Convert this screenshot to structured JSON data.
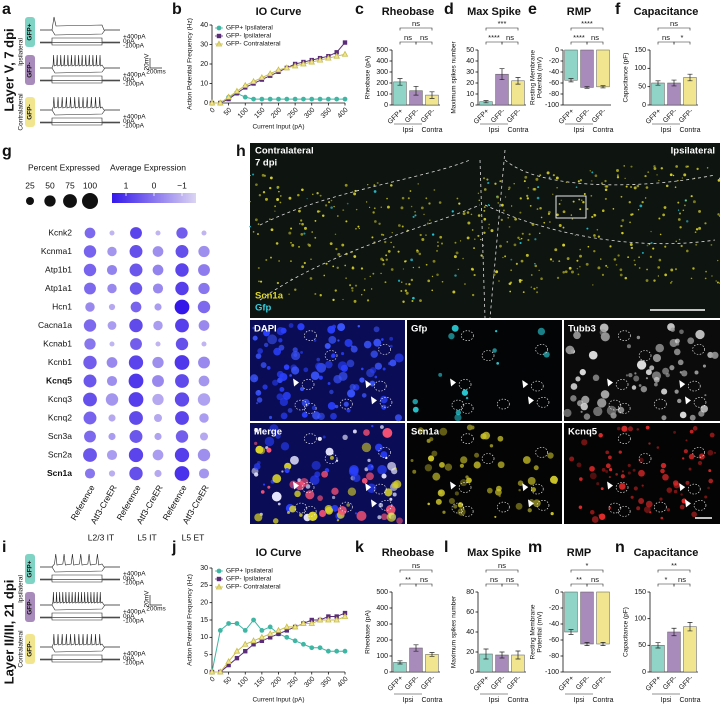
{
  "panel_labels": [
    "a",
    "b",
    "c",
    "d",
    "e",
    "f",
    "g",
    "h",
    "i",
    "j",
    "k",
    "l",
    "m",
    "n"
  ],
  "row_labels": [
    "Layer V, 7 dpi",
    "Layer II/III, 21 dpi"
  ],
  "traces": [
    {
      "cells": [
        "GFP+",
        "GFP-",
        "GFP-"
      ],
      "sides": [
        "Ipsilateral",
        "Contralateral"
      ],
      "steps": [
        "+400pA",
        "0pA",
        "-100pA"
      ],
      "scale": [
        "20mV",
        "200ms"
      ]
    },
    {
      "cells": [
        "GFP+",
        "GFP-",
        "GFP-"
      ],
      "sides": [
        "Ipsilateral",
        "Contralateral"
      ],
      "steps": [
        "+400pA",
        "0pA",
        "-100pA"
      ],
      "scale": [
        "20mV",
        "200ms"
      ]
    }
  ],
  "micrographs": {
    "overview": {
      "left": "Contralateral",
      "time": "7 dpi",
      "right": "Ipsilateral",
      "channels": [
        "Scn1a",
        "Gfp"
      ]
    },
    "tiles": [
      "DAPI",
      "Gfp",
      "Tubb3",
      "Merge",
      "Scn1a",
      "Kcnq5"
    ]
  },
  "chart_data": [
    {
      "type": "line",
      "title": "IO Curve",
      "xlabel": "Current Input (pA)",
      "ylabel": "Action Potential Frequency (Hz)",
      "x": [
        0,
        25,
        50,
        75,
        100,
        125,
        150,
        175,
        200,
        225,
        250,
        275,
        300,
        325,
        350,
        375,
        400
      ],
      "xlim": [
        0,
        400
      ],
      "xticks": [
        0,
        50,
        100,
        150,
        200,
        250,
        300,
        350,
        400
      ],
      "ylim": [
        0,
        40
      ],
      "yticks": [
        0,
        10,
        20,
        30,
        40
      ],
      "legend": "upper left",
      "series": [
        {
          "name": "GFP+ Ipsilateral",
          "color": "#3fb5a3",
          "marker": "circle",
          "values": [
            0,
            0,
            3,
            5,
            3,
            2,
            2,
            2,
            2,
            2,
            2,
            2,
            2,
            2,
            2,
            2,
            2
          ]
        },
        {
          "name": "GFP- Ipsilateral",
          "color": "#5b2d79",
          "marker": "square",
          "values": [
            0,
            0,
            2,
            5,
            8,
            10,
            12,
            14,
            16,
            18,
            20,
            21,
            22,
            23,
            24,
            26,
            31
          ]
        },
        {
          "name": "GFP- Contralateral",
          "color": "#c8bd4c",
          "marker": "triangle",
          "values": [
            0,
            0,
            3,
            6,
            9,
            11,
            13,
            15,
            17,
            18,
            19,
            20,
            21,
            22,
            23,
            24,
            25
          ]
        }
      ]
    },
    {
      "type": "bar",
      "title": "Rheobase",
      "ylabel": "Rheobase (pA)",
      "categories": [
        "GFP+",
        "GFP-",
        "GFP-"
      ],
      "groups": [
        "Ipsi",
        "Contra"
      ],
      "values": [
        210,
        130,
        90
      ],
      "errors": [
        30,
        40,
        30
      ],
      "colors": [
        "#8fd4c7",
        "#a98bbb",
        "#f1e68f"
      ],
      "ylim": [
        0,
        500
      ],
      "yticks": [
        0,
        100,
        200,
        300,
        400,
        500
      ],
      "significance": [
        "ns",
        "ns",
        "ns"
      ]
    },
    {
      "type": "bar",
      "title": "Max Spike",
      "ylabel": "Maximum spikes number",
      "categories": [
        "GFP+",
        "GFP-",
        "GFP-"
      ],
      "groups": [
        "Ipsi",
        "Contra"
      ],
      "values": [
        3,
        28,
        22
      ],
      "errors": [
        1,
        5,
        3
      ],
      "colors": [
        "#8fd4c7",
        "#a98bbb",
        "#f1e68f"
      ],
      "ylim": [
        0,
        50
      ],
      "yticks": [
        0,
        10,
        20,
        30,
        40,
        50
      ],
      "significance": [
        "***",
        "****",
        "ns"
      ]
    },
    {
      "type": "bar",
      "title": "RMP",
      "ylabel": [
        "Resting Membrane",
        "Potential (mV)"
      ],
      "categories": [
        "GFP+",
        "GFP-",
        "GFP-"
      ],
      "groups": [
        "Ipsi",
        "Contra"
      ],
      "values": [
        -55,
        -68,
        -67
      ],
      "errors": [
        3,
        1.5,
        2
      ],
      "colors": [
        "#8fd4c7",
        "#a98bbb",
        "#f1e68f"
      ],
      "ylim": [
        -100,
        0
      ],
      "yticks": [
        0,
        -20,
        -40,
        -60,
        -80,
        -100
      ],
      "significance": [
        "****",
        "****",
        "ns"
      ]
    },
    {
      "type": "bar",
      "title": "Capacitance",
      "ylabel": "Capacitance (pF)",
      "categories": [
        "GFP+",
        "GFP-",
        "GFP-"
      ],
      "groups": [
        "Ipsi",
        "Contra"
      ],
      "values": [
        60,
        60,
        75
      ],
      "errors": [
        6,
        8,
        9
      ],
      "colors": [
        "#8fd4c7",
        "#a98bbb",
        "#f1e68f"
      ],
      "ylim": [
        0,
        150
      ],
      "yticks": [
        0,
        50,
        100,
        150
      ],
      "significance": [
        "ns",
        "ns",
        "*"
      ]
    },
    {
      "type": "dot",
      "rows": [
        "Kcnk2",
        "Kcnma1",
        "Atp1b1",
        "Atp1a1",
        "Hcn1",
        "Cacna1a",
        "Kcnab1",
        "Kcnb1",
        "Kcnq5",
        "Kcnq3",
        "Kcnq2",
        "Scn3a",
        "Scn2a",
        "Scn1a"
      ],
      "bold_rows": [
        8,
        13
      ],
      "columns": [
        "Reference",
        "Atf3-CreER",
        "Reference",
        "Atf3-CreER",
        "Reference",
        "Atf3-CreER"
      ],
      "groups": [
        "L2/3 IT",
        "L5 IT",
        "L5 ET"
      ],
      "size_title": "Percent Expressed",
      "size_ticks": [
        25,
        50,
        75,
        100
      ],
      "color_title": "Average Expression",
      "color_ticks": [
        1,
        0,
        {
          "value": -1,
          "label": "−1"
        }
      ],
      "clim": [
        1.5,
        -1.5
      ],
      "colors": [
        "#3418ea",
        "#dcd4f2"
      ],
      "percent": [
        [
          45,
          60,
          60,
          55,
          35,
          60,
          50,
          70,
          65,
          75,
          65,
          55,
          75,
          40
        ],
        [
          10,
          35,
          40,
          35,
          15,
          30,
          10,
          45,
          40,
          60,
          20,
          20,
          40,
          15
        ],
        [
          55,
          65,
          65,
          60,
          45,
          70,
          55,
          80,
          85,
          85,
          75,
          65,
          80,
          70
        ],
        [
          10,
          45,
          45,
          40,
          20,
          35,
          10,
          50,
          55,
          50,
          25,
          20,
          45,
          20
        ],
        [
          50,
          65,
          70,
          70,
          85,
          75,
          60,
          85,
          75,
          80,
          75,
          60,
          80,
          85
        ],
        [
          10,
          50,
          55,
          50,
          60,
          45,
          10,
          55,
          45,
          60,
          35,
          25,
          60,
          40
        ]
      ],
      "average": [
        [
          0.2,
          0.3,
          0.3,
          0.2,
          -0.3,
          0.2,
          0,
          0.4,
          0.5,
          0.6,
          0.3,
          0.2,
          0.5,
          0
        ],
        [
          -1,
          -0.5,
          -0.2,
          -0.3,
          -0.8,
          -0.6,
          -1,
          -0.3,
          -0.4,
          -0.5,
          -0.8,
          -0.6,
          -0.6,
          -0.9
        ],
        [
          0.8,
          0.6,
          0.5,
          0.5,
          0.3,
          0.7,
          0.4,
          0.8,
          1,
          0.9,
          0.7,
          0.5,
          0.8,
          0.6
        ],
        [
          -1,
          -0.4,
          -0.2,
          -0.3,
          -0.6,
          -0.6,
          -1,
          -0.4,
          -0.3,
          -0.8,
          -0.8,
          -0.7,
          -0.6,
          -0.8
        ],
        [
          0.4,
          0.6,
          0.8,
          0.9,
          1.5,
          0.9,
          0.6,
          1,
          0.7,
          0.7,
          0.8,
          0.4,
          0.9,
          1.1
        ],
        [
          -1,
          -0.4,
          -0.1,
          0,
          0.2,
          -0.3,
          -1,
          -0.3,
          -0.5,
          -0.7,
          -0.6,
          -0.8,
          -0.4,
          -0.5
        ]
      ]
    },
    {
      "type": "line",
      "title": "IO Curve",
      "xlabel": "Current Input (pA)",
      "ylabel": "Action Potential Frequency (Hz)",
      "x": [
        0,
        25,
        50,
        75,
        100,
        125,
        150,
        175,
        200,
        225,
        250,
        275,
        300,
        325,
        350,
        375,
        400
      ],
      "xlim": [
        0,
        400
      ],
      "xticks": [
        0,
        50,
        100,
        150,
        200,
        250,
        300,
        350,
        400
      ],
      "ylim": [
        0,
        30
      ],
      "yticks": [
        0,
        5,
        10,
        15,
        20,
        25,
        30
      ],
      "legend": "upper left",
      "series": [
        {
          "name": "GFP+ Ipsilateral",
          "color": "#3fb5a3",
          "marker": "circle",
          "values": [
            0,
            12,
            14,
            14,
            12,
            15,
            12,
            13,
            11,
            10,
            9,
            8,
            7,
            7,
            6,
            6,
            6
          ]
        },
        {
          "name": "GFP- Ipsilateral",
          "color": "#5b2d79",
          "marker": "square",
          "values": [
            0,
            0,
            2,
            4,
            6,
            8,
            9,
            10,
            11,
            12,
            13,
            14,
            15,
            15,
            16,
            16,
            17
          ]
        },
        {
          "name": "GFP- Contralateral",
          "color": "#c8bd4c",
          "marker": "triangle",
          "values": [
            0,
            0,
            3,
            6,
            8,
            9,
            10,
            11,
            12,
            13,
            13,
            14,
            14,
            15,
            15,
            15,
            16
          ]
        }
      ]
    },
    {
      "type": "bar",
      "title": "Rheobase",
      "ylabel": "Rheobase (pA)",
      "categories": [
        "GFP+",
        "GFP-",
        "GFP-"
      ],
      "groups": [
        "Ipsi",
        "Contra"
      ],
      "values": [
        60,
        150,
        110
      ],
      "errors": [
        10,
        20,
        12
      ],
      "colors": [
        "#8fd4c7",
        "#a98bbb",
        "#f1e68f"
      ],
      "ylim": [
        0,
        500
      ],
      "yticks": [
        0,
        100,
        200,
        300,
        400,
        500
      ],
      "significance": [
        "ns",
        "**",
        "ns"
      ]
    },
    {
      "type": "bar",
      "title": "Max Spike",
      "ylabel": "Maximum spikes number",
      "categories": [
        "GFP+",
        "GFP-",
        "GFP-"
      ],
      "groups": [
        "Ipsi",
        "Contra"
      ],
      "values": [
        18,
        17,
        17
      ],
      "errors": [
        5,
        3,
        4
      ],
      "colors": [
        "#8fd4c7",
        "#a98bbb",
        "#f1e68f"
      ],
      "ylim": [
        0,
        80
      ],
      "yticks": [
        0,
        20,
        40,
        60,
        80
      ],
      "significance": [
        "ns",
        "ns",
        "ns"
      ]
    },
    {
      "type": "bar",
      "title": "RMP",
      "ylabel": [
        "Resting Membrane",
        "Potential (mV)"
      ],
      "categories": [
        "GFP+",
        "GFP-",
        "GFP-"
      ],
      "groups": [
        "Ipsi",
        "Contra"
      ],
      "values": [
        -50,
        -65,
        -65
      ],
      "errors": [
        3,
        2,
        2
      ],
      "colors": [
        "#8fd4c7",
        "#a98bbb",
        "#f1e68f"
      ],
      "ylim": [
        -100,
        0
      ],
      "yticks": [
        0,
        -20,
        -40,
        -60,
        -80,
        -100
      ],
      "significance": [
        "*",
        "**",
        "ns"
      ]
    },
    {
      "type": "bar",
      "title": "Capacitance",
      "ylabel": "Capacitance (pF)",
      "categories": [
        "GFP+",
        "GFP-",
        "GFP-"
      ],
      "groups": [
        "Ipsi",
        "Contra"
      ],
      "values": [
        50,
        75,
        85
      ],
      "errors": [
        5,
        7,
        8
      ],
      "colors": [
        "#8fd4c7",
        "#a98bbb",
        "#f1e68f"
      ],
      "ylim": [
        0,
        150
      ],
      "yticks": [
        0,
        50,
        100,
        150
      ],
      "significance": [
        "**",
        "*",
        "ns"
      ]
    }
  ]
}
